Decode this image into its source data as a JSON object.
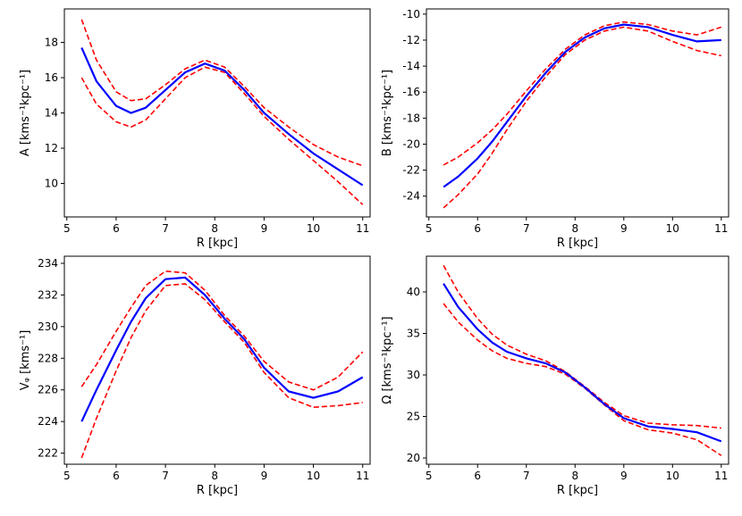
{
  "chart_data": [
    {
      "type": "line",
      "xlabel": "R [kpc]",
      "ylabel": "A [kms⁻¹kpc⁻¹]",
      "x": [
        5.3,
        5.6,
        6.0,
        6.3,
        6.6,
        7.0,
        7.4,
        7.8,
        8.2,
        8.6,
        9.0,
        9.5,
        10.0,
        10.5,
        11.0
      ],
      "xlim": [
        4.95,
        11.15
      ],
      "xticks": [
        5,
        6,
        7,
        8,
        9,
        10,
        11
      ],
      "ylim": [
        8.1,
        19.9
      ],
      "yticks": [
        10,
        12,
        14,
        16,
        18
      ],
      "series": [
        {
          "color": "#ff0000",
          "dashed": true,
          "values": [
            19.3,
            17.0,
            15.2,
            14.7,
            14.8,
            15.6,
            16.5,
            17.0,
            16.6,
            15.5,
            14.3,
            13.2,
            12.2,
            11.5,
            11.0
          ]
        },
        {
          "color": "#ff0000",
          "dashed": true,
          "values": [
            16.0,
            14.5,
            13.5,
            13.2,
            13.6,
            14.8,
            16.0,
            16.6,
            16.3,
            15.1,
            13.8,
            12.5,
            11.3,
            10.1,
            8.8
          ]
        },
        {
          "color": "#0000ff",
          "dashed": false,
          "values": [
            17.7,
            15.8,
            14.4,
            14.0,
            14.3,
            15.3,
            16.3,
            16.8,
            16.4,
            15.3,
            14.0,
            12.8,
            11.7,
            10.8,
            9.9
          ]
        }
      ]
    },
    {
      "type": "line",
      "xlabel": "R [kpc]",
      "ylabel": "B [kms⁻¹kpc⁻¹]",
      "x": [
        5.3,
        5.6,
        6.0,
        6.3,
        6.6,
        7.0,
        7.4,
        7.8,
        8.2,
        8.6,
        9.0,
        9.5,
        10.0,
        10.5,
        11.0
      ],
      "xlim": [
        4.95,
        11.15
      ],
      "xticks": [
        5,
        6,
        7,
        8,
        9,
        10,
        11
      ],
      "ylim": [
        -25.6,
        -9.6
      ],
      "yticks": [
        -24,
        -22,
        -20,
        -18,
        -16,
        -14,
        -12,
        -10
      ],
      "series": [
        {
          "color": "#ff0000",
          "dashed": true,
          "values": [
            -21.6,
            -21.0,
            -19.9,
            -18.9,
            -17.7,
            -15.9,
            -14.2,
            -12.7,
            -11.6,
            -10.9,
            -10.6,
            -10.8,
            -11.3,
            -11.6,
            -11.0
          ]
        },
        {
          "color": "#ff0000",
          "dashed": true,
          "values": [
            -24.9,
            -23.9,
            -22.3,
            -20.7,
            -18.9,
            -16.7,
            -14.8,
            -13.1,
            -12.0,
            -11.3,
            -11.0,
            -11.3,
            -12.1,
            -12.8,
            -13.2
          ]
        },
        {
          "color": "#0000ff",
          "dashed": false,
          "values": [
            -23.3,
            -22.5,
            -21.1,
            -19.8,
            -18.3,
            -16.3,
            -14.5,
            -12.9,
            -11.8,
            -11.1,
            -10.8,
            -11.0,
            -11.6,
            -12.1,
            -12.0
          ]
        }
      ]
    },
    {
      "type": "line",
      "xlabel": "R [kpc]",
      "ylabel": "Vᵩ [kms⁻¹]",
      "x": [
        5.3,
        5.6,
        6.0,
        6.3,
        6.6,
        7.0,
        7.4,
        7.8,
        8.2,
        8.6,
        9.0,
        9.5,
        10.0,
        10.5,
        11.0
      ],
      "xlim": [
        4.95,
        11.15
      ],
      "xticks": [
        5,
        6,
        7,
        8,
        9,
        10,
        11
      ],
      "ylim": [
        221.3,
        234.45
      ],
      "yticks": [
        222,
        224,
        226,
        228,
        230,
        232,
        234
      ],
      "series": [
        {
          "color": "#ff0000",
          "dashed": true,
          "values": [
            226.2,
            227.6,
            229.7,
            231.2,
            232.6,
            233.5,
            233.4,
            232.3,
            230.7,
            229.4,
            227.8,
            226.5,
            226.0,
            226.8,
            228.4
          ]
        },
        {
          "color": "#ff0000",
          "dashed": true,
          "values": [
            221.7,
            224.2,
            227.2,
            229.3,
            231.0,
            232.6,
            232.7,
            231.7,
            230.3,
            229.0,
            227.1,
            225.5,
            224.9,
            225.0,
            225.2
          ]
        },
        {
          "color": "#0000ff",
          "dashed": false,
          "values": [
            224.0,
            226.0,
            228.5,
            230.3,
            231.8,
            233.0,
            233.1,
            232.0,
            230.5,
            229.2,
            227.4,
            225.9,
            225.5,
            225.9,
            226.8
          ]
        }
      ]
    },
    {
      "type": "line",
      "xlabel": "R [kpc]",
      "ylabel": "Ω [kms⁻¹kpc⁻¹]",
      "x": [
        5.3,
        5.6,
        6.0,
        6.3,
        6.6,
        7.0,
        7.4,
        7.8,
        8.2,
        8.6,
        9.0,
        9.5,
        10.0,
        10.5,
        11.0
      ],
      "xlim": [
        4.95,
        11.15
      ],
      "xticks": [
        5,
        6,
        7,
        8,
        9,
        10,
        11
      ],
      "ylim": [
        19.25,
        44.3
      ],
      "yticks": [
        20,
        25,
        30,
        35,
        40
      ],
      "series": [
        {
          "color": "#ff0000",
          "dashed": true,
          "values": [
            43.2,
            40.0,
            36.8,
            34.9,
            33.6,
            32.5,
            31.7,
            30.4,
            28.6,
            26.7,
            25.1,
            24.2,
            24.0,
            23.9,
            23.6
          ]
        },
        {
          "color": "#ff0000",
          "dashed": true,
          "values": [
            38.6,
            36.4,
            34.2,
            32.9,
            32.0,
            31.4,
            31.0,
            30.1,
            28.4,
            26.4,
            24.5,
            23.4,
            23.0,
            22.2,
            20.3
          ]
        },
        {
          "color": "#0000ff",
          "dashed": false,
          "values": [
            41.0,
            38.2,
            35.5,
            33.9,
            32.8,
            32.0,
            31.4,
            30.3,
            28.5,
            26.5,
            24.8,
            23.8,
            23.5,
            23.1,
            22.0
          ]
        }
      ]
    }
  ]
}
